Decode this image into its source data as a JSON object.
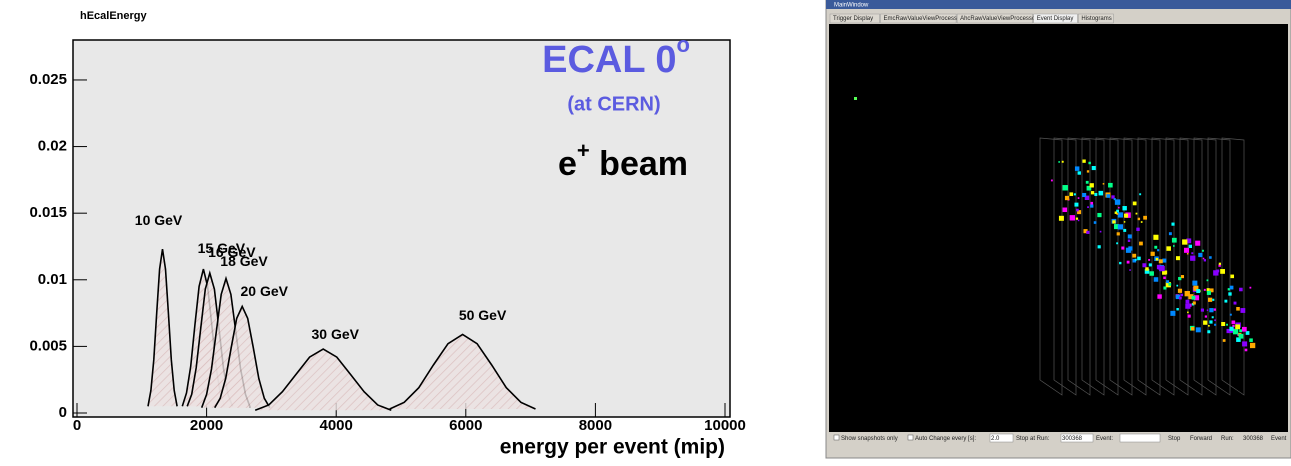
{
  "chart_data": {
    "type": "line",
    "title": "hEcalEnergy",
    "xlabel": "energy per event (mip)",
    "annotations": {
      "ecal": "ECAL 0",
      "ecal_sup": "o",
      "site": "(at CERN)",
      "beam_e": "e",
      "beam_sup": "+",
      "beam": " beam"
    },
    "xlim": [
      0,
      10000
    ],
    "xticks": [
      0,
      2000,
      4000,
      6000,
      8000,
      10000
    ],
    "ylim": [
      0,
      0.028
    ],
    "yticks": [
      0,
      0.005,
      0.01,
      0.015,
      0.02,
      0.025
    ],
    "grid": false,
    "background": "#e8e8e8",
    "series": [
      {
        "name": "10 GeV",
        "color": "#000000",
        "x": [
          1095,
          1140,
          1185,
          1230,
          1275,
          1320,
          1365,
          1410,
          1455,
          1500,
          1545
        ],
        "values": [
          0.0005,
          0.0017,
          0.004,
          0.0075,
          0.0108,
          0.0123,
          0.0108,
          0.0075,
          0.004,
          0.0017,
          0.0005
        ]
      },
      {
        "name": "15 GeV",
        "color": "#000000",
        "x": [
          1625,
          1690,
          1755,
          1820,
          1885,
          1950,
          2015,
          2080,
          2145,
          2210,
          2275
        ],
        "values": [
          0.0005,
          0.0015,
          0.0035,
          0.0066,
          0.0095,
          0.0108,
          0.0095,
          0.0066,
          0.0035,
          0.0015,
          0.0005
        ]
      },
      {
        "name": "16 GeV",
        "color": "#000000",
        "x": [
          1700,
          1770,
          1840,
          1910,
          1980,
          2050,
          2120,
          2190,
          2260,
          2330,
          2400
        ],
        "values": [
          0.0005,
          0.0014,
          0.0034,
          0.0064,
          0.0093,
          0.0105,
          0.0093,
          0.0064,
          0.0034,
          0.0014,
          0.0005
        ]
      },
      {
        "name": "18 GeV",
        "color": "#000000",
        "x": [
          1925,
          2000,
          2075,
          2150,
          2225,
          2300,
          2375,
          2450,
          2525,
          2600,
          2675
        ],
        "values": [
          0.0004,
          0.0014,
          0.0033,
          0.0061,
          0.0089,
          0.0101,
          0.0089,
          0.0061,
          0.0033,
          0.0014,
          0.0004
        ]
      },
      {
        "name": "20 GeV",
        "color": "#000000",
        "x": [
          2125,
          2210,
          2295,
          2380,
          2465,
          2550,
          2635,
          2720,
          2805,
          2890,
          2975
        ],
        "values": [
          0.0004,
          0.0011,
          0.0026,
          0.0049,
          0.0071,
          0.008,
          0.0071,
          0.0049,
          0.0026,
          0.0011,
          0.0004
        ]
      },
      {
        "name": "30 GeV",
        "color": "#000000",
        "x": [
          2750,
          2960,
          3170,
          3380,
          3590,
          3800,
          4010,
          4220,
          4430,
          4640,
          4850
        ],
        "values": [
          0.0002,
          0.0006,
          0.0016,
          0.0029,
          0.0042,
          0.0048,
          0.0042,
          0.0029,
          0.0016,
          0.0006,
          0.0002
        ]
      },
      {
        "name": "50 GeV",
        "color": "#000000",
        "x": [
          4825,
          5050,
          5275,
          5500,
          5725,
          5950,
          6175,
          6400,
          6625,
          6850,
          7075
        ],
        "values": [
          0.0003,
          0.0008,
          0.0019,
          0.0036,
          0.0052,
          0.0059,
          0.0052,
          0.0036,
          0.0019,
          0.0008,
          0.0003
        ]
      }
    ]
  },
  "event_display": {
    "window_title": "MainWindow",
    "tabs": [
      "Trigger Display",
      "EmcRawValueViewProcessor",
      "AhcRawValueViewProcessor",
      "Event Display",
      "Histograms"
    ],
    "controls": [
      "Show snapshots only",
      "Auto Change every [s]:",
      "2.0",
      "Stop at Run:",
      "300368",
      "Event:",
      "Stop",
      "Forward",
      "Run:",
      "300368",
      "Event"
    ]
  }
}
